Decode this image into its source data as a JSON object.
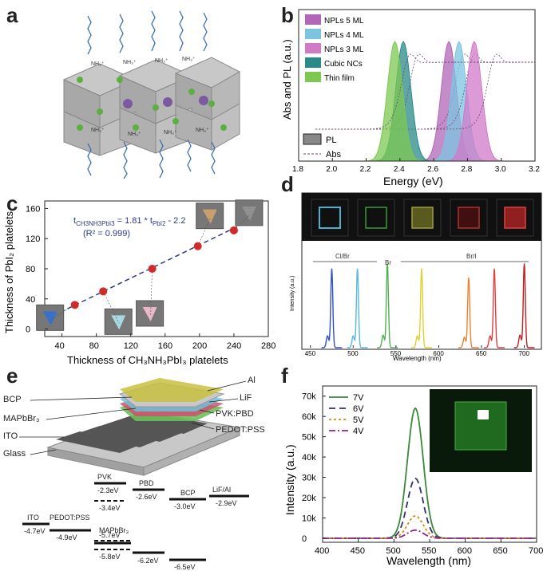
{
  "labels": {
    "a": "a",
    "b": "b",
    "c": "c",
    "d": "d",
    "e": "e",
    "f": "f"
  },
  "panel_a": {
    "nh_label": "NH₃⁺"
  },
  "panel_e": {
    "layers": [
      "BCP",
      "MAPbBr₃",
      "ITO",
      "Glass",
      "Al",
      "LiF",
      "PVK:PBD",
      "PEDOT:PSS"
    ],
    "levels": {
      "names": [
        "PVK",
        "PBD",
        "BCP",
        "LiF/Al",
        "ITO",
        "PEDOT:PSS",
        "MAPbBr₃"
      ],
      "values": [
        "-2.3eV",
        "-2.6eV",
        "-3.0eV",
        "-2.9eV",
        "-3.4eV",
        "-4.7eV",
        "-4.9eV",
        "-5.7eV",
        "-5.8eV",
        "-6.2eV",
        "-6.5eV"
      ]
    }
  },
  "chart_data": [
    {
      "id": "b",
      "type": "line",
      "xlabel": "Energy (eV)",
      "ylabel": "Abs and PL (a.u.)",
      "xlim": [
        1.8,
        3.2
      ],
      "xticks": [
        "1.8",
        "2.0",
        "2.2",
        "2.4",
        "2.6",
        "2.8",
        "3.0",
        "3.2"
      ],
      "legend": [
        "NPLs 5 ML",
        "NPLs 4 ML",
        "NPLs 3 ML",
        "Cubic NCs",
        "Thin film"
      ],
      "legend2": [
        "PL",
        "Abs"
      ],
      "colors": [
        "#b266b8",
        "#7cc4e0",
        "#d07ac8",
        "#2a8a8a",
        "#7cc850"
      ],
      "series": [
        {
          "name": "NPLs 5 ML",
          "pl_peak": 2.69,
          "abs_edge": 2.72
        },
        {
          "name": "NPLs 4 ML",
          "pl_peak": 2.75,
          "abs_edge": 2.78
        },
        {
          "name": "NPLs 3 ML",
          "pl_peak": 2.84,
          "abs_edge": 2.91
        },
        {
          "name": "Cubic NCs",
          "pl_peak": 2.42,
          "abs_edge": 2.45
        },
        {
          "name": "Thin film",
          "pl_peak": 2.37,
          "abs_edge": 2.4
        }
      ]
    },
    {
      "id": "c",
      "type": "scatter",
      "xlabel": "Thickness of CH₃NH₃PbI₃ platelets",
      "ylabel": "Thickness of PbI₂ platelets",
      "xlim": [
        20,
        280
      ],
      "ylim": [
        -10,
        170
      ],
      "xticks": [
        "40",
        "80",
        "120",
        "160",
        "200",
        "240",
        "280"
      ],
      "yticks": [
        "0",
        "40",
        "80",
        "120",
        "160"
      ],
      "equation": "t",
      "equation_sub1": "CH3NH3PbI3",
      "equation_mid": " = 1.81 * t",
      "equation_sub2": "PbI2",
      "equation_end": " - 2.2",
      "r2": "(R² = 0.999)",
      "x": [
        55,
        88,
        145,
        198,
        240
      ],
      "y": [
        32,
        50,
        80,
        110,
        131
      ],
      "fit": {
        "slope": 0.5525,
        "intercept": 1.22
      }
    },
    {
      "id": "d",
      "type": "line",
      "xlabel": "Wavelength (nm)",
      "ylabel": "Intensity (a.u.)",
      "xlim": [
        440,
        720
      ],
      "xticks": [
        "450",
        "500",
        "550",
        "600",
        "650",
        "700"
      ],
      "region_labels": [
        "Cl/Br",
        "Br",
        "Br/I"
      ],
      "peaks": [
        {
          "center": 475,
          "color": "#3050c8",
          "h": 0.62
        },
        {
          "center": 505,
          "color": "#58b8e0",
          "h": 0.62
        },
        {
          "center": 540,
          "color": "#50b050",
          "h": 0.66
        },
        {
          "center": 580,
          "color": "#e0d030",
          "h": 0.62
        },
        {
          "center": 635,
          "color": "#f08030",
          "h": 0.55
        },
        {
          "center": 665,
          "color": "#e04040",
          "h": 0.62
        },
        {
          "center": 700,
          "color": "#c02020",
          "h": 0.66
        }
      ]
    },
    {
      "id": "f",
      "type": "line",
      "xlabel": "Wavelength (nm)",
      "ylabel": "Intensity (a.u.)",
      "xlim": [
        400,
        700
      ],
      "ylim": [
        -2000,
        75000
      ],
      "xticks": [
        "400",
        "450",
        "500",
        "550",
        "600",
        "650",
        "700"
      ],
      "yticks": [
        "0",
        "10k",
        "20k",
        "30k",
        "40k",
        "50k",
        "60k",
        "70k"
      ],
      "series": [
        {
          "name": "7V",
          "peak": 64000,
          "center": 530,
          "color": "#3a8a3a",
          "dash": ""
        },
        {
          "name": "6V",
          "peak": 29500,
          "center": 530,
          "color": "#303070",
          "dash": "8,5"
        },
        {
          "name": "5V",
          "peak": 11000,
          "center": 530,
          "color": "#d08a10",
          "dash": "3,3"
        },
        {
          "name": "4V",
          "peak": 4000,
          "center": 530,
          "color": "#902090",
          "dash": "8,3,2,3"
        }
      ]
    }
  ]
}
